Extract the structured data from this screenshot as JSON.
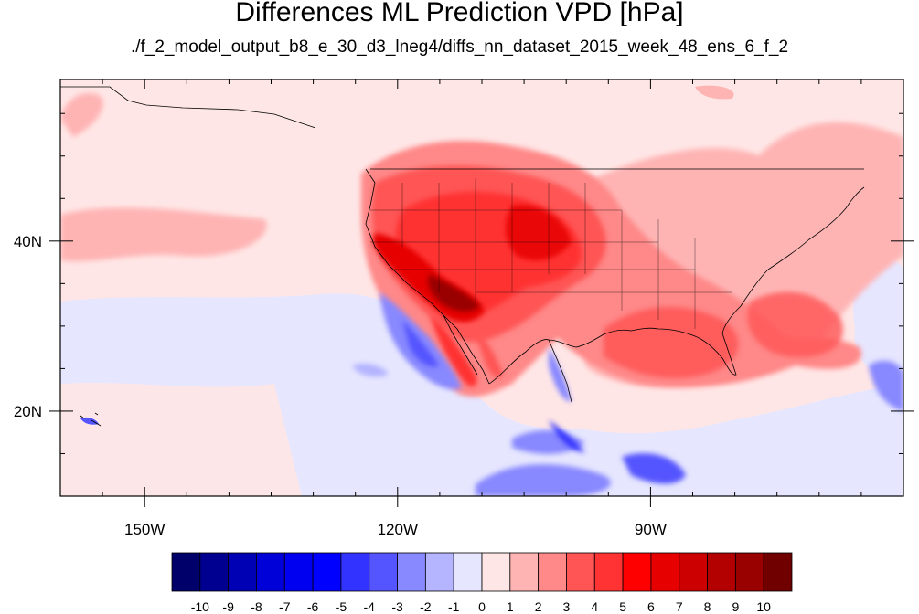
{
  "title": "Differences ML Prediction VPD [hPa]",
  "subtitle": "./f_2_model_output_b8_e_30_d3_lneg4/diffs_nn_dataset_2015_week_48_ens_6_f_2",
  "map": {
    "lon_range": [
      -160,
      -60
    ],
    "lat_range": [
      10,
      59
    ],
    "lon_ticks": [
      {
        "value": -150,
        "label": "150W"
      },
      {
        "value": -120,
        "label": "120W"
      },
      {
        "value": -90,
        "label": "90W"
      }
    ],
    "lat_ticks": [
      {
        "value": 40,
        "label": "40N"
      },
      {
        "value": 20,
        "label": "20N"
      }
    ]
  },
  "colorbar": {
    "labels": [
      "-10",
      "-9",
      "-8",
      "-7",
      "-6",
      "-5",
      "-4",
      "-3",
      "-2",
      "-1",
      "0",
      "1",
      "2",
      "3",
      "4",
      "5",
      "6",
      "7",
      "8",
      "9",
      "10"
    ],
    "colors": [
      "#00006b",
      "#000090",
      "#0000b4",
      "#0000d8",
      "#0000f0",
      "#0000ff",
      "#3333ff",
      "#5555ff",
      "#8888ff",
      "#b4b4ff",
      "#e6e6ff",
      "#ffe6e6",
      "#ffb4b4",
      "#ff8888",
      "#ff5555",
      "#ff3333",
      "#ff0000",
      "#e60000",
      "#cc0000",
      "#b30000",
      "#990000",
      "#700000"
    ]
  }
}
